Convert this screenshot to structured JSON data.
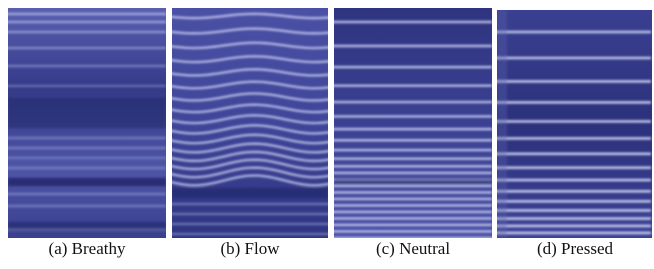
{
  "figure": {
    "panels": [
      {
        "caption": "(a) Breathy"
      },
      {
        "caption": "(b) Flow"
      },
      {
        "caption": "(c) Neutral"
      },
      {
        "caption": "(d) Pressed"
      }
    ]
  }
}
